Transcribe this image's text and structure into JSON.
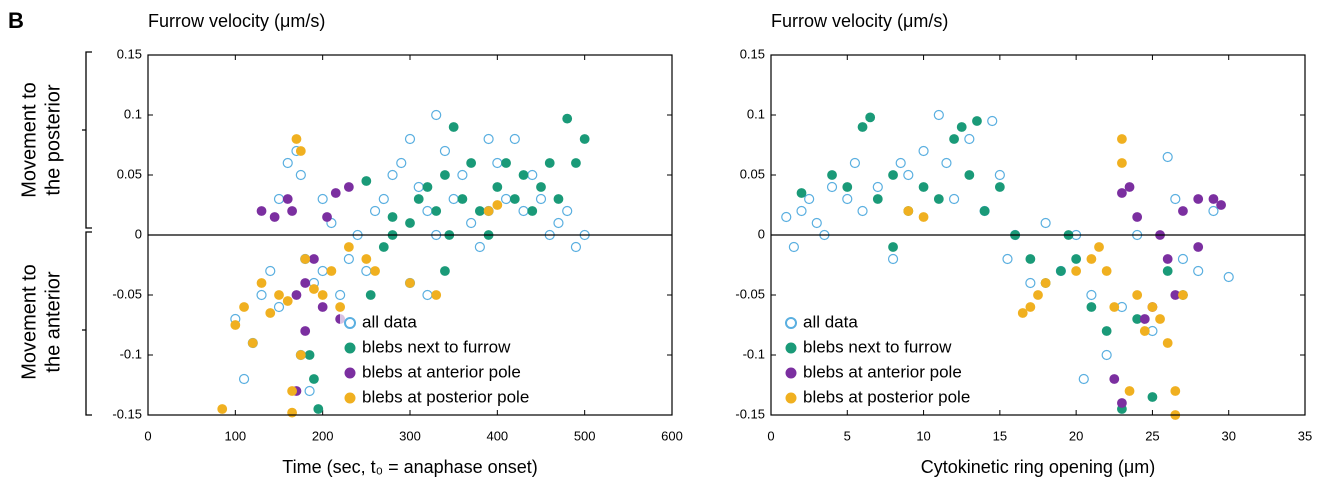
{
  "panel_label": "B",
  "annotations": [
    [
      "Movement to",
      "the posterior"
    ],
    [
      "Movement to",
      "the anterior"
    ]
  ],
  "chart_data": [
    {
      "type": "scatter",
      "title": "Furrow velocity (μm/s)",
      "xlabel": "Time (sec, t₀ = anaphase onset)",
      "xlim": [
        0,
        600
      ],
      "xticks": [
        0,
        100,
        200,
        300,
        400,
        500,
        600
      ],
      "ylim": [
        -0.15,
        0.15
      ],
      "yticks": [
        0.15,
        0.1,
        0.05,
        0,
        -0.05,
        -0.1,
        -0.15
      ],
      "hline": 0,
      "legend": "lower center",
      "series": [
        {
          "name": "all data",
          "color": "#5aafe0",
          "marker": "open",
          "x": [
            100,
            110,
            120,
            130,
            140,
            150,
            160,
            170,
            175,
            180,
            190,
            200,
            210,
            220,
            230,
            240,
            250,
            260,
            270,
            280,
            290,
            300,
            310,
            320,
            330,
            340,
            350,
            360,
            370,
            380,
            390,
            400,
            410,
            420,
            430,
            440,
            450,
            460,
            470,
            480,
            490,
            500,
            175,
            185,
            200,
            150,
            320,
            300,
            330,
            390
          ],
          "values": [
            -0.07,
            -0.12,
            -0.09,
            -0.05,
            -0.03,
            -0.06,
            0.06,
            0.07,
            0.05,
            -0.02,
            -0.04,
            -0.03,
            0.01,
            -0.05,
            -0.02,
            0.0,
            -0.03,
            0.02,
            0.03,
            0.05,
            0.06,
            0.08,
            0.04,
            0.02,
            0.1,
            0.07,
            0.03,
            0.05,
            0.01,
            -0.01,
            0.02,
            0.06,
            0.03,
            0.08,
            0.02,
            0.05,
            0.03,
            0.0,
            0.01,
            0.02,
            -0.01,
            0.0,
            -0.1,
            -0.13,
            0.03,
            0.03,
            -0.05,
            -0.04,
            0.0,
            0.08
          ]
        },
        {
          "name": "blebs next to furrow",
          "color": "#1a9a78",
          "marker": "filled",
          "x": [
            185,
            190,
            195,
            250,
            270,
            280,
            300,
            310,
            320,
            330,
            340,
            350,
            360,
            370,
            380,
            390,
            400,
            410,
            420,
            430,
            440,
            450,
            460,
            470,
            480,
            490,
            500,
            340,
            280,
            255,
            345
          ],
          "values": [
            -0.1,
            -0.12,
            -0.145,
            0.045,
            -0.01,
            0.0,
            0.01,
            0.03,
            0.04,
            0.02,
            0.05,
            0.09,
            0.03,
            0.06,
            0.02,
            0.0,
            0.04,
            0.06,
            0.03,
            0.05,
            0.02,
            0.04,
            0.06,
            0.03,
            0.097,
            0.06,
            0.08,
            -0.03,
            0.015,
            -0.05,
            0.0
          ]
        },
        {
          "name": "blebs at anterior pole",
          "color": "#7b2fa0",
          "marker": "filled",
          "x": [
            130,
            145,
            160,
            165,
            170,
            180,
            190,
            200,
            205,
            215,
            220,
            230,
            180,
            170
          ],
          "values": [
            0.02,
            0.015,
            0.03,
            0.02,
            -0.05,
            -0.04,
            -0.02,
            -0.06,
            0.015,
            0.035,
            -0.07,
            0.04,
            -0.08,
            -0.13
          ]
        },
        {
          "name": "blebs at posterior pole",
          "color": "#f0b020",
          "marker": "filled",
          "x": [
            85,
            100,
            110,
            120,
            130,
            140,
            150,
            160,
            165,
            170,
            175,
            180,
            190,
            200,
            210,
            220,
            230,
            250,
            260,
            300,
            330,
            390,
            400,
            165,
            175
          ],
          "values": [
            -0.145,
            -0.075,
            -0.06,
            -0.09,
            -0.04,
            -0.065,
            -0.05,
            -0.055,
            -0.148,
            0.08,
            0.07,
            -0.02,
            -0.045,
            -0.05,
            -0.03,
            -0.06,
            -0.01,
            -0.02,
            -0.03,
            -0.04,
            -0.05,
            0.02,
            0.025,
            -0.13,
            -0.1
          ]
        }
      ]
    },
    {
      "type": "scatter",
      "title": "Furrow velocity (μm/s)",
      "xlabel": "Cytokinetic ring opening (μm)",
      "xlim": [
        0,
        35
      ],
      "xticks": [
        0,
        5,
        10,
        15,
        20,
        25,
        30,
        35
      ],
      "ylim": [
        -0.15,
        0.15
      ],
      "yticks": [
        0.15,
        0.1,
        0.05,
        0,
        -0.05,
        -0.1,
        -0.15
      ],
      "hline": 0,
      "legend": "lower left",
      "series": [
        {
          "name": "all data",
          "color": "#5aafe0",
          "marker": "open",
          "x": [
            1,
            1.5,
            2,
            2.5,
            3,
            3.5,
            4,
            5,
            5.5,
            6,
            7,
            8,
            9,
            10,
            11,
            11.5,
            12,
            13,
            14,
            15,
            15.5,
            16,
            17,
            18,
            19,
            20,
            21,
            22,
            23,
            24,
            25,
            26,
            26.5,
            27,
            28,
            29,
            30,
            20.5,
            14.5,
            8.5
          ],
          "values": [
            0.015,
            -0.01,
            0.02,
            0.03,
            0.01,
            0.0,
            0.04,
            0.03,
            0.06,
            0.02,
            0.04,
            -0.02,
            0.05,
            0.07,
            0.1,
            0.06,
            0.03,
            0.08,
            0.02,
            0.05,
            -0.02,
            0.0,
            -0.04,
            0.01,
            -0.03,
            0.0,
            -0.05,
            -0.1,
            -0.06,
            0.0,
            -0.08,
            0.065,
            0.03,
            -0.02,
            -0.03,
            0.02,
            -0.035,
            -0.12,
            0.095,
            0.06
          ]
        },
        {
          "name": "blebs next to furrow",
          "color": "#1a9a78",
          "marker": "filled",
          "x": [
            2,
            4,
            5,
            6,
            6.5,
            7,
            8,
            9,
            10,
            11,
            12,
            13,
            13.5,
            14,
            15,
            16,
            17,
            18,
            19,
            20,
            21,
            22,
            23,
            24,
            25,
            26,
            27,
            8,
            12.5,
            19.5
          ],
          "values": [
            0.035,
            0.05,
            0.04,
            0.09,
            0.098,
            0.03,
            0.05,
            0.02,
            0.04,
            0.03,
            0.08,
            0.05,
            0.095,
            0.02,
            0.04,
            0.0,
            -0.02,
            -0.04,
            -0.03,
            -0.02,
            -0.06,
            -0.08,
            -0.145,
            -0.07,
            -0.135,
            -0.03,
            -0.05,
            -0.01,
            0.09,
            0.0
          ]
        },
        {
          "name": "blebs at anterior pole",
          "color": "#7b2fa0",
          "marker": "filled",
          "x": [
            23,
            23.5,
            24,
            24.5,
            25,
            25.5,
            26,
            26.5,
            27,
            28,
            28,
            29,
            29.5,
            22.5,
            23
          ],
          "values": [
            0.035,
            0.04,
            0.015,
            -0.07,
            -0.06,
            0.0,
            -0.02,
            -0.05,
            0.02,
            0.03,
            -0.01,
            0.03,
            0.025,
            -0.12,
            -0.14
          ]
        },
        {
          "name": "blebs at posterior pole",
          "color": "#f0b020",
          "marker": "filled",
          "x": [
            9,
            10,
            17,
            17.5,
            18,
            20,
            21,
            22,
            22.5,
            23,
            23,
            23.5,
            24,
            24.5,
            25,
            25.5,
            26,
            26.5,
            26.5,
            21.5,
            27,
            16.5
          ],
          "values": [
            0.02,
            0.015,
            -0.06,
            -0.05,
            -0.04,
            -0.03,
            -0.02,
            -0.03,
            -0.06,
            0.08,
            0.06,
            -0.13,
            -0.05,
            -0.08,
            -0.06,
            -0.07,
            -0.09,
            -0.13,
            -0.15,
            -0.01,
            -0.05,
            -0.065
          ]
        }
      ]
    }
  ]
}
